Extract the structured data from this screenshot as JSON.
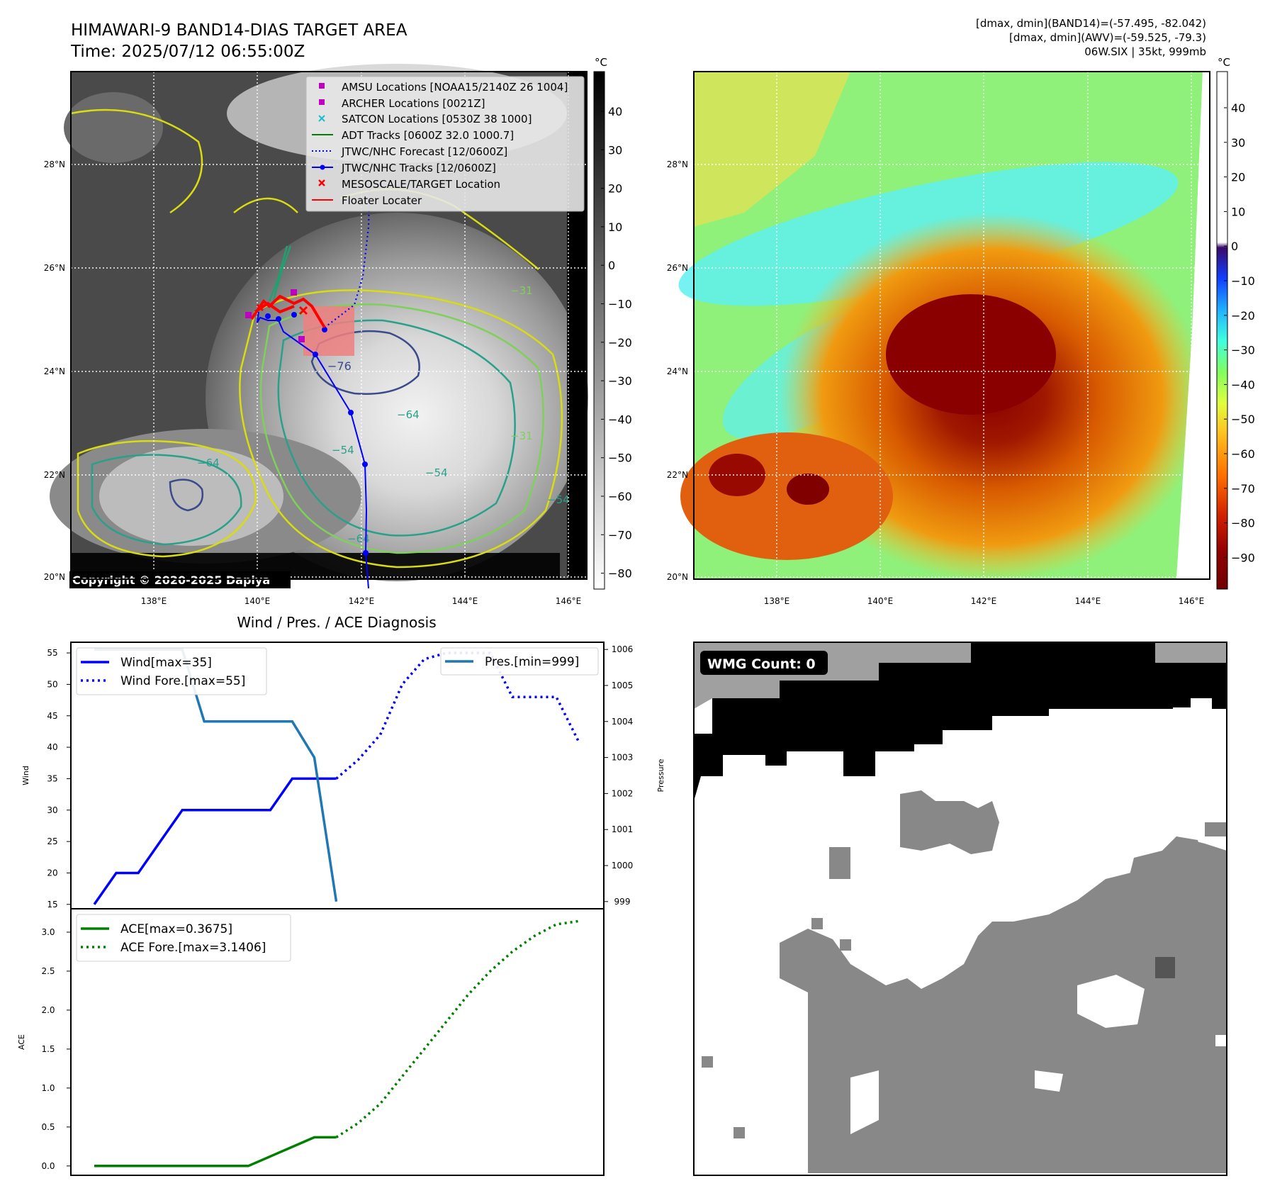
{
  "header": {
    "title": "HIMAWARI-9 BAND14-DIAS TARGET AREA",
    "time": "Time: 2025/07/12 06:55:00Z",
    "stats": [
      "[dmax, dmin](BAND14)=(-57.495, -82.042)",
      "[dmax, dmin](AWV)=(-59.525, -79.3)",
      "06W.SIX | 35kt, 999mb"
    ]
  },
  "map_ticks": {
    "lon": [
      "138°E",
      "140°E",
      "142°E",
      "144°E",
      "146°E"
    ],
    "lat": [
      "28°N",
      "26°N",
      "24°N",
      "22°N",
      "20°N"
    ]
  },
  "ir_map": {
    "unit": "°C",
    "colorbar_ticks": [
      "40",
      "30",
      "20",
      "10",
      "0",
      "−10",
      "−20",
      "−30",
      "−40",
      "−50",
      "−60",
      "−70",
      "−80"
    ],
    "copyright": "Copyright © 2020-2025 Dapiya",
    "contour_labels": [
      "−76",
      "−64",
      "−54",
      "−31",
      "−64",
      "−54",
      "−31",
      "−64",
      "−54",
      "−64",
      "−31",
      "−54",
      "−64"
    ],
    "legend": [
      {
        "label": "AMSU Locations [NOAA15/2140Z 26 1004]",
        "marker": "square",
        "color": "#c000c0"
      },
      {
        "label": "ARCHER Locations [0021Z]",
        "marker": "square",
        "color": "#c000c0"
      },
      {
        "label": "SATCON Locations [0530Z 38 1000]",
        "marker": "x",
        "color": "#17becf"
      },
      {
        "label": "ADT Tracks [0600Z 32.0 1000.7]",
        "marker": "line",
        "color": "#008000"
      },
      {
        "label": "JTWC/NHC Forecast [12/0600Z]",
        "marker": "dotted",
        "color": "#0000ff"
      },
      {
        "label": "JTWC/NHC Tracks [12/0600Z]",
        "marker": "line-dot",
        "color": "#0000ff"
      },
      {
        "label": "MESOSCALE/TARGET Location",
        "marker": "x",
        "color": "#ff0000"
      },
      {
        "label": "Floater Locater",
        "marker": "line",
        "color": "#ff0000"
      }
    ]
  },
  "awv_map": {
    "unit": "°C",
    "colorbar_ticks": [
      "40",
      "30",
      "20",
      "10",
      "0",
      "−10",
      "−20",
      "−30",
      "−40",
      "−50",
      "−60",
      "−70",
      "−80",
      "−90"
    ]
  },
  "diagnosis": {
    "title": "Wind / Pres. / ACE Diagnosis",
    "wind_ylabel": "Wind",
    "pres_ylabel": "Pressure",
    "ace_ylabel": "ACE",
    "legend_wind": "Wind[max=35]",
    "legend_wind_fore": "Wind Fore.[max=55]",
    "legend_pres": "Pres.[min=999]",
    "legend_ace": "ACE[max=0.3675]",
    "legend_ace_fore": "ACE Fore.[max=3.1406]",
    "wind_ticks": [
      "55",
      "50",
      "45",
      "40",
      "35",
      "30",
      "25",
      "20",
      "15"
    ],
    "pres_ticks": [
      "1006",
      "1005",
      "1004",
      "1003",
      "1002",
      "1001",
      "1000",
      "999"
    ],
    "ace_ticks": [
      "3.0",
      "2.5",
      "2.0",
      "1.5",
      "1.0",
      "0.5",
      "0.0"
    ]
  },
  "wmg": {
    "label": "WMG Count: 0"
  },
  "chart_data": [
    {
      "type": "line",
      "title": "Wind / Pres. / ACE Diagnosis",
      "ylabel": "Wind",
      "ylim": [
        14.3,
        56.7
      ],
      "x": [
        0,
        1,
        2,
        3,
        4,
        5,
        6,
        7,
        8,
        9,
        10,
        11,
        12,
        13,
        14,
        15,
        16,
        17,
        18,
        19,
        20,
        21,
        22
      ],
      "series": [
        {
          "name": "Wind[max=35]",
          "style": "solid",
          "color": "#0000ff",
          "x": [
            0,
            1,
            2,
            3,
            4,
            5,
            6,
            7,
            8,
            9,
            10,
            11
          ],
          "values": [
            15,
            20,
            20,
            25,
            30,
            30,
            30,
            30,
            30,
            35,
            35,
            35
          ]
        },
        {
          "name": "Wind Fore.[max=55]",
          "style": "dotted",
          "color": "#0000ff",
          "x": [
            11,
            12,
            13,
            14,
            15,
            16,
            17,
            18,
            19,
            20,
            21,
            22
          ],
          "values": [
            35,
            38,
            42,
            50,
            54,
            55,
            55,
            55,
            48,
            48,
            48,
            41
          ]
        },
        {
          "name": "Pres.[min=999]",
          "style": "solid",
          "color": "#1f77b4",
          "axis": "right",
          "x": [
            0,
            1,
            2,
            3,
            4,
            5,
            6,
            7,
            8,
            9,
            10,
            11
          ],
          "values": [
            1006,
            1006,
            1006,
            1006,
            1006,
            1004,
            1004,
            1004,
            1004,
            1004,
            1003,
            999
          ]
        }
      ],
      "y2label": "Pressure",
      "y2lim": [
        998.8,
        1006.2
      ]
    },
    {
      "type": "line",
      "ylabel": "ACE",
      "ylim": [
        -0.12,
        3.3
      ],
      "x": [
        0,
        1,
        2,
        3,
        4,
        5,
        6,
        7,
        8,
        9,
        10,
        11,
        12,
        13,
        14,
        15,
        16,
        17,
        18,
        19,
        20,
        21,
        22
      ],
      "series": [
        {
          "name": "ACE[max=0.3675]",
          "style": "solid",
          "color": "#008000",
          "x": [
            0,
            1,
            2,
            3,
            4,
            5,
            6,
            7,
            8,
            9,
            10,
            11
          ],
          "values": [
            0,
            0,
            0,
            0,
            0,
            0,
            0,
            0,
            0.1225,
            0.245,
            0.3675,
            0.3675
          ]
        },
        {
          "name": "ACE Fore.[max=3.1406]",
          "style": "dotted",
          "color": "#008000",
          "x": [
            11,
            12,
            13,
            14,
            15,
            16,
            17,
            18,
            19,
            20,
            21,
            22
          ],
          "values": [
            0.3675,
            0.55,
            0.8,
            1.15,
            1.5,
            1.85,
            2.2,
            2.5,
            2.75,
            2.95,
            3.1,
            3.1406
          ]
        }
      ]
    }
  ],
  "colors": {
    "wind": "#0000ff",
    "pres": "#1f77b4",
    "ace": "#008000",
    "target": "#ff0000"
  }
}
